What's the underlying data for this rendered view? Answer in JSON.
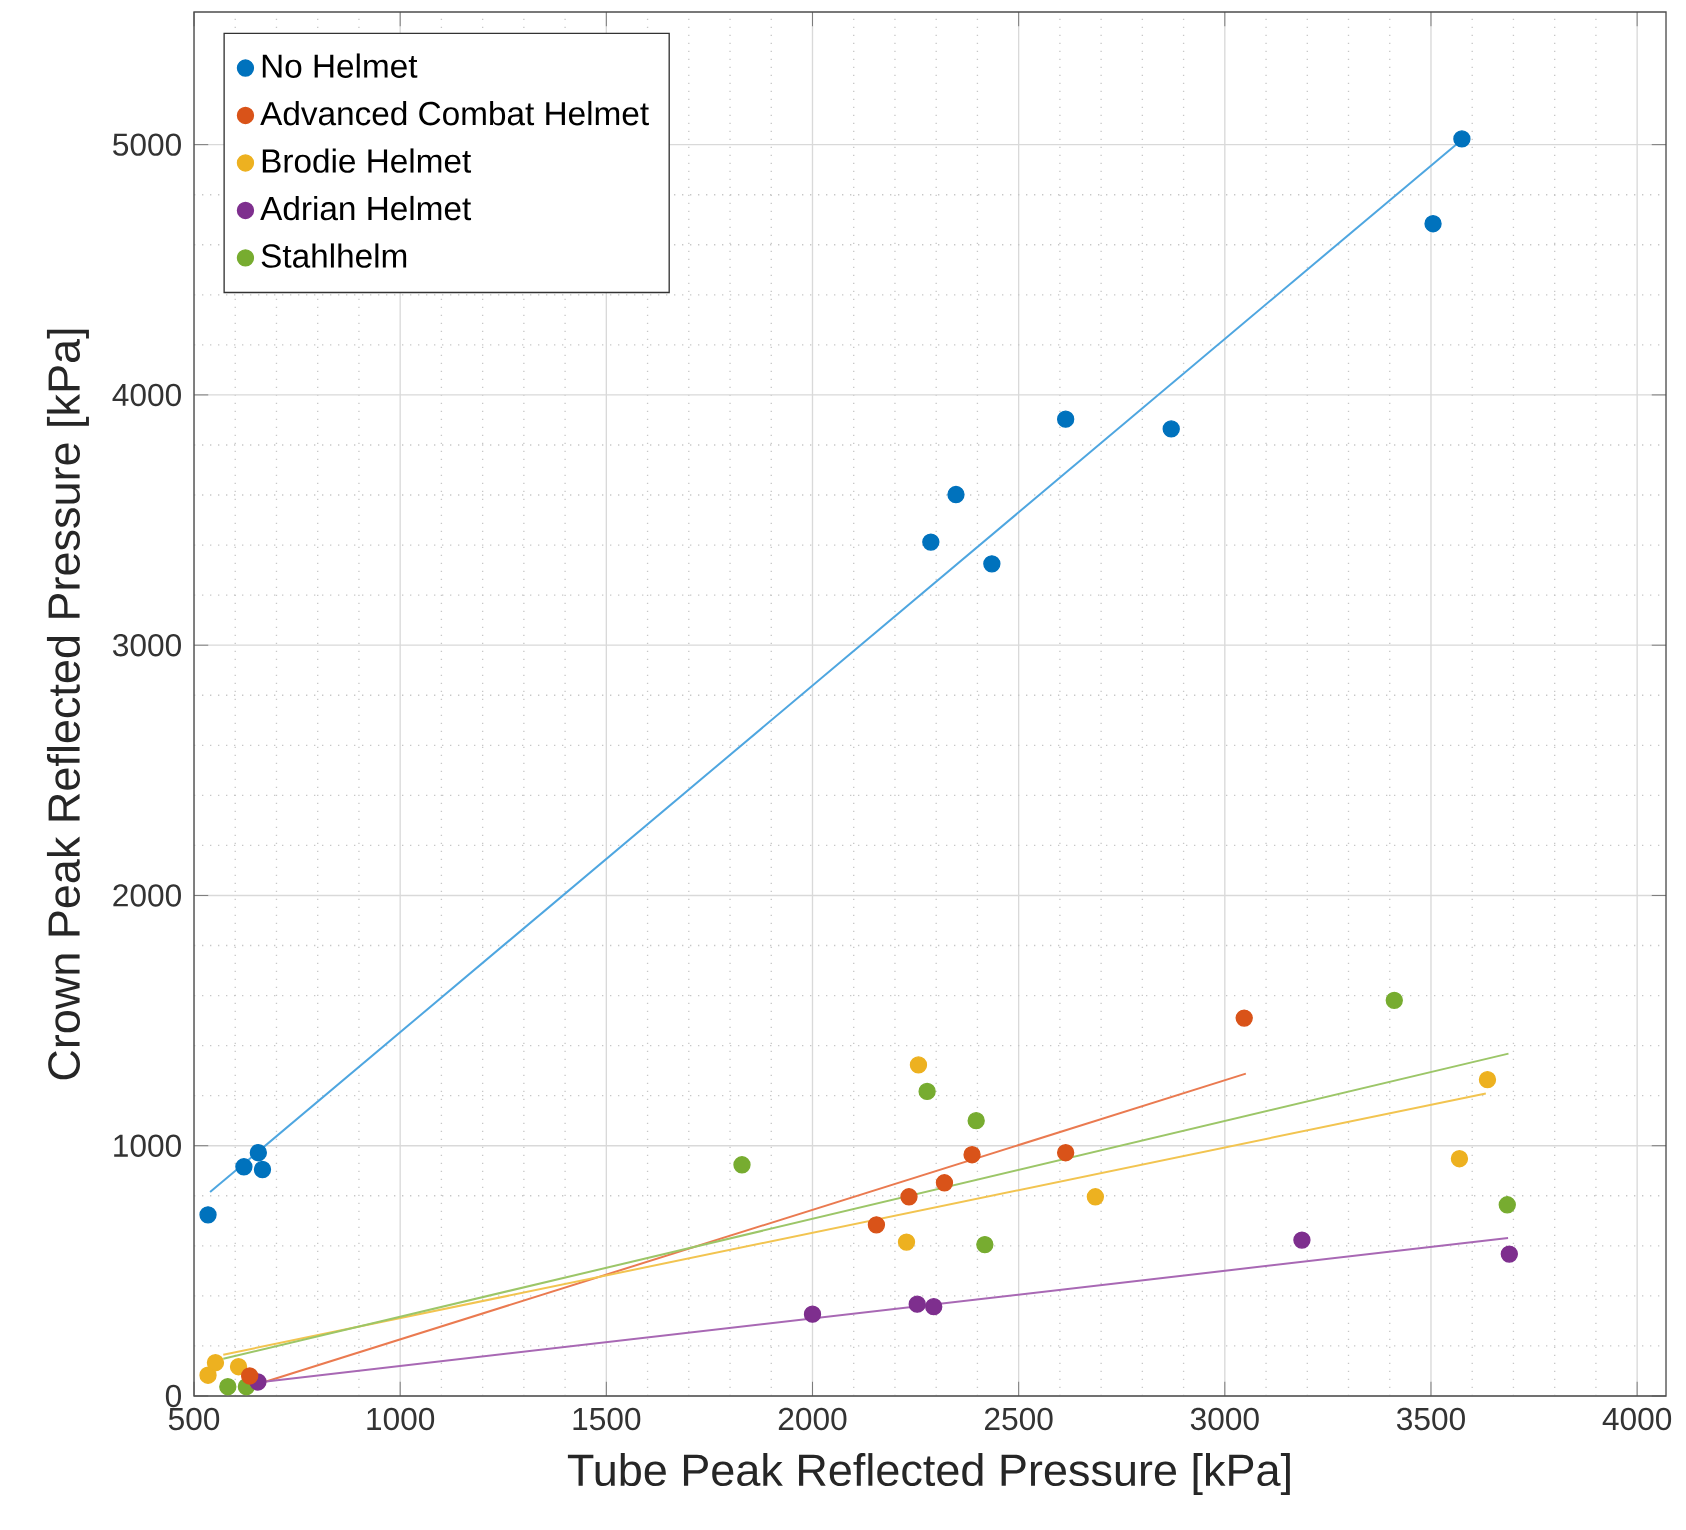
{
  "chart_data": {
    "type": "scatter",
    "xlabel": "Tube Peak Reflected Pressure [kPa]",
    "ylabel": "Crown Peak Reflected Pressure [kPa]",
    "xlim": [
      500,
      4070
    ],
    "ylim": [
      0,
      5530
    ],
    "xticks": [
      500,
      1000,
      1500,
      2000,
      2500,
      3000,
      3500,
      4000
    ],
    "yticks": [
      0,
      1000,
      2000,
      3000,
      4000,
      5000
    ],
    "grid": true,
    "legend": "top left",
    "marker": "circle",
    "series": [
      {
        "name": "No Helmet",
        "color": "#0072bd",
        "x": [
          534,
          621,
          656,
          666,
          2287,
          2348,
          2435,
          2614,
          2870,
          3505,
          3575
        ],
        "values": [
          724,
          916,
          972,
          905,
          3412,
          3602,
          3325,
          3903,
          3864,
          4684,
          5023
        ]
      },
      {
        "name": "Advanced Combat Helmet",
        "color": "#d95319",
        "x": [
          635,
          2155,
          2234,
          2320,
          2387,
          2614,
          3047
        ],
        "values": [
          80,
          684,
          796,
          852,
          964,
          972,
          1510
        ]
      },
      {
        "name": "Brodie Helmet",
        "color": "#edb120",
        "x": [
          534,
          552,
          608,
          2228,
          2257,
          2686,
          3569,
          3637
        ],
        "values": [
          83,
          133,
          117,
          615,
          1323,
          796,
          948,
          1264
        ]
      },
      {
        "name": "Adrian Helmet",
        "color": "#7e2f8e",
        "x": [
          655,
          2000,
          2254,
          2294,
          3187,
          3690
        ],
        "values": [
          56,
          327,
          367,
          357,
          623,
          567
        ]
      },
      {
        "name": "Stahlhelm",
        "color": "#77ac30",
        "x": [
          582,
          627,
          1829,
          2278,
          2397,
          2418,
          3411,
          3685
        ],
        "values": [
          37,
          37,
          924,
          1217,
          1100,
          605,
          1581,
          764
        ]
      },
      {
        "type": "line",
        "color": "#4ea6e0",
        "marker": "none",
        "x": [
          539,
          3575
        ],
        "values": [
          815,
          5020
        ]
      },
      {
        "type": "line",
        "color": "#ea7a50",
        "marker": "none",
        "x": [
          675,
          3051
        ],
        "values": [
          58,
          1288
        ]
      },
      {
        "type": "line",
        "color": "#f2c450",
        "marker": "none",
        "x": [
          571,
          3633
        ],
        "values": [
          165,
          1209
        ]
      },
      {
        "type": "line",
        "color": "#a868b4",
        "marker": "none",
        "x": [
          675,
          3687
        ],
        "values": [
          58,
          631
        ]
      },
      {
        "type": "line",
        "color": "#9cc668",
        "marker": "none",
        "x": [
          571,
          3688
        ],
        "values": [
          149,
          1368
        ]
      }
    ]
  }
}
